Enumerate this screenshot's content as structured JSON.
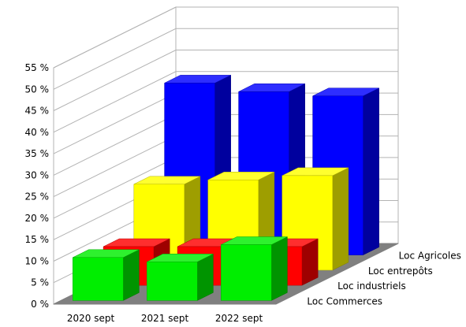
{
  "chart_data": {
    "type": "bar",
    "subtype": "3d-column",
    "categories": [
      "2020 sept",
      "2021 sept",
      "2022 sept"
    ],
    "series": [
      {
        "name": "Loc Commerces",
        "color": "#00ee00",
        "values": [
          10,
          9,
          13
        ]
      },
      {
        "name": "Loc industriels",
        "color": "#ff0000",
        "values": [
          9,
          9,
          9
        ]
      },
      {
        "name": "Loc entrepôts",
        "color": "#ffff00",
        "values": [
          20,
          21,
          22
        ]
      },
      {
        "name": "Loc Agricoles",
        "color": "#0000ff",
        "values": [
          40,
          38,
          37
        ]
      }
    ],
    "ylim": [
      0,
      55
    ],
    "yticks": [
      "0 %",
      "5 %",
      "10 %",
      "15 %",
      "20 %",
      "25 %",
      "30 %",
      "35 %",
      "40 %",
      "45 %",
      "50 %",
      "55 %"
    ],
    "grid": true,
    "title": "",
    "xlabel": "",
    "ylabel": ""
  }
}
